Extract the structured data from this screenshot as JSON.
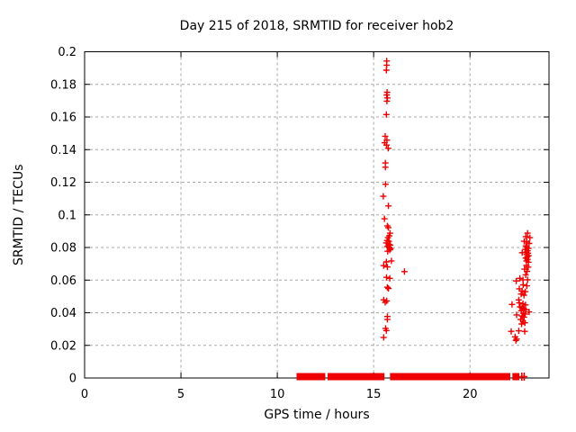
{
  "chart_data": {
    "type": "scatter",
    "title": "Day 215 of 2018, SRMTID for receiver hob2",
    "xlabel": "GPS time / hours",
    "ylabel": "SRMTID / TECUs",
    "xlim": [
      0,
      24.1
    ],
    "ylim": [
      0,
      0.2
    ],
    "xticks": [
      {
        "v": 0,
        "label": "0"
      },
      {
        "v": 5,
        "label": "5"
      },
      {
        "v": 10,
        "label": "10"
      },
      {
        "v": 15,
        "label": "15"
      },
      {
        "v": 20,
        "label": "20"
      }
    ],
    "yticks": [
      {
        "v": 0,
        "label": "0"
      },
      {
        "v": 0.02,
        "label": "0.02"
      },
      {
        "v": 0.04,
        "label": "0.04"
      },
      {
        "v": 0.06,
        "label": "0.06"
      },
      {
        "v": 0.08,
        "label": "0.08"
      },
      {
        "v": 0.1,
        "label": "0.1"
      },
      {
        "v": 0.12,
        "label": "0.12"
      },
      {
        "v": 0.14,
        "label": "0.14"
      },
      {
        "v": 0.16,
        "label": "0.16"
      },
      {
        "v": 0.18,
        "label": "0.18"
      },
      {
        "v": 0.2,
        "label": "0.2"
      }
    ],
    "grid": true,
    "legend": "none",
    "marker": "plus",
    "marker_color": "#ee0000",
    "grid_color": "#a8a8a8",
    "axis_color": "#000000",
    "background_color": "#ffffff",
    "series": [
      {
        "name": "SRMTID",
        "points": [
          [
            15.68,
            0.1943
          ],
          [
            15.68,
            0.1918
          ],
          [
            15.66,
            0.1887
          ],
          [
            15.7,
            0.1752
          ],
          [
            15.68,
            0.1735
          ],
          [
            15.71,
            0.1717
          ],
          [
            15.69,
            0.1697
          ],
          [
            15.66,
            0.1615
          ],
          [
            15.6,
            0.1482
          ],
          [
            15.69,
            0.1458
          ],
          [
            15.57,
            0.1442
          ],
          [
            15.67,
            0.1428
          ],
          [
            15.76,
            0.1408
          ],
          [
            15.61,
            0.1318
          ],
          [
            15.61,
            0.1292
          ],
          [
            15.62,
            0.1188
          ],
          [
            15.5,
            0.1114
          ],
          [
            15.77,
            0.1055
          ],
          [
            15.56,
            0.0976
          ],
          [
            15.71,
            0.0932
          ],
          [
            15.77,
            0.0922
          ],
          [
            15.85,
            0.0888
          ],
          [
            15.81,
            0.0871
          ],
          [
            15.74,
            0.086
          ],
          [
            15.7,
            0.0843
          ],
          [
            15.79,
            0.0838
          ],
          [
            15.65,
            0.0828
          ],
          [
            15.79,
            0.082
          ],
          [
            15.86,
            0.0815
          ],
          [
            15.71,
            0.0806
          ],
          [
            15.81,
            0.08
          ],
          [
            15.88,
            0.0792
          ],
          [
            15.84,
            0.0785
          ],
          [
            15.73,
            0.0777
          ],
          [
            15.92,
            0.0718
          ],
          [
            15.66,
            0.0712
          ],
          [
            15.52,
            0.0689
          ],
          [
            15.71,
            0.0681
          ],
          [
            16.6,
            0.0652
          ],
          [
            15.67,
            0.0617
          ],
          [
            15.84,
            0.0611
          ],
          [
            15.71,
            0.0556
          ],
          [
            15.77,
            0.0549
          ],
          [
            15.52,
            0.0479
          ],
          [
            15.68,
            0.0473
          ],
          [
            15.6,
            0.0464
          ],
          [
            15.71,
            0.0377
          ],
          [
            15.71,
            0.0359
          ],
          [
            15.62,
            0.0304
          ],
          [
            15.66,
            0.0291
          ],
          [
            15.52,
            0.0249
          ],
          [
            22.99,
            0.0888
          ],
          [
            22.9,
            0.0867
          ],
          [
            23.11,
            0.086
          ],
          [
            22.81,
            0.0838
          ],
          [
            22.96,
            0.0834
          ],
          [
            23.07,
            0.0825
          ],
          [
            22.9,
            0.081
          ],
          [
            22.94,
            0.0801
          ],
          [
            23.04,
            0.0795
          ],
          [
            22.87,
            0.0788
          ],
          [
            22.99,
            0.078
          ],
          [
            22.93,
            0.0772
          ],
          [
            22.71,
            0.0768
          ],
          [
            23.01,
            0.0765
          ],
          [
            22.94,
            0.0757
          ],
          [
            23.04,
            0.075
          ],
          [
            22.97,
            0.0742
          ],
          [
            22.89,
            0.0735
          ],
          [
            22.99,
            0.0727
          ],
          [
            22.93,
            0.0718
          ],
          [
            23.03,
            0.071
          ],
          [
            22.93,
            0.0691
          ],
          [
            23.02,
            0.068
          ],
          [
            22.83,
            0.0667
          ],
          [
            22.96,
            0.0654
          ],
          [
            22.89,
            0.0632
          ],
          [
            22.59,
            0.0611
          ],
          [
            22.75,
            0.0602
          ],
          [
            22.99,
            0.0602
          ],
          [
            22.4,
            0.0595
          ],
          [
            22.76,
            0.0571
          ],
          [
            22.95,
            0.0565
          ],
          [
            22.56,
            0.0547
          ],
          [
            22.71,
            0.0534
          ],
          [
            22.87,
            0.0529
          ],
          [
            22.65,
            0.0515
          ],
          [
            22.8,
            0.0507
          ],
          [
            22.53,
            0.0479
          ],
          [
            22.18,
            0.0451
          ],
          [
            22.56,
            0.046
          ],
          [
            22.75,
            0.0455
          ],
          [
            22.88,
            0.0448
          ],
          [
            22.6,
            0.0436
          ],
          [
            22.7,
            0.043
          ],
          [
            22.8,
            0.0424
          ],
          [
            22.89,
            0.0418
          ],
          [
            22.66,
            0.0412
          ],
          [
            23.07,
            0.0405
          ],
          [
            22.76,
            0.0398
          ],
          [
            22.86,
            0.0392
          ],
          [
            22.42,
            0.0387
          ],
          [
            22.7,
            0.038
          ],
          [
            22.8,
            0.0373
          ],
          [
            22.63,
            0.0359
          ],
          [
            22.75,
            0.0348
          ],
          [
            22.85,
            0.0338
          ],
          [
            22.68,
            0.0331
          ],
          [
            22.14,
            0.0286
          ],
          [
            22.53,
            0.0289
          ],
          [
            22.84,
            0.0286
          ],
          [
            22.34,
            0.0252
          ],
          [
            22.42,
            0.0239
          ],
          [
            22.38,
            0.023
          ]
        ]
      }
    ],
    "zero_band": {
      "y": 0,
      "segments": [
        [
          11.0,
          12.49
        ],
        [
          12.61,
          15.56
        ],
        [
          15.85,
          22.09
        ],
        [
          22.2,
          22.56
        ]
      ],
      "isolated_points_x": [
        22.69,
        22.81
      ]
    }
  }
}
